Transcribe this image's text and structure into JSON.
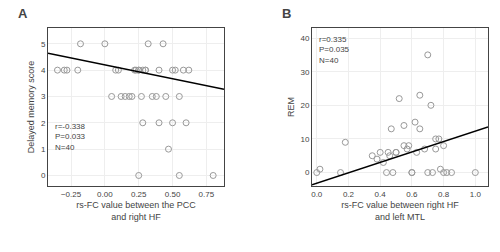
{
  "chart_data": [
    {
      "type": "scatter",
      "title": "A",
      "x_label": "rs-FC value between the PCC\nand right HF",
      "y_label": "Delayed memory score",
      "xlim": [
        -0.42,
        0.88
      ],
      "ylim": [
        -0.4,
        5.6
      ],
      "xticks": [
        {
          "value": -0.25,
          "label": "−0.25"
        },
        {
          "value": 0.0,
          "label": "0.00"
        },
        0.25,
        {
          "value": 0.5,
          "label": "0.50"
        },
        0.75
      ],
      "yticks": [
        0,
        1,
        2,
        3,
        4,
        5
      ],
      "annotation": "r=-0.338\nP=0.033\nN=40",
      "series": [
        {
          "type": "scatter",
          "color": "#999999",
          "marker": "circle-open",
          "x": [
            -0.35,
            -0.3,
            -0.28,
            -0.2,
            -0.18,
            0.0,
            0.05,
            0.08,
            0.1,
            0.12,
            0.15,
            0.18,
            0.2,
            0.22,
            0.23,
            0.25,
            0.25,
            0.25,
            0.27,
            0.28,
            0.28,
            0.3,
            0.3,
            0.32,
            0.35,
            0.38,
            0.4,
            0.4,
            0.43,
            0.45,
            0.47,
            0.5,
            0.5,
            0.52,
            0.55,
            0.55,
            0.58,
            0.6,
            0.62,
            0.8
          ],
          "values": [
            4.0,
            4.0,
            4.0,
            4.0,
            5.0,
            5.0,
            3.0,
            4.0,
            4.0,
            3.0,
            3.0,
            3.0,
            3.0,
            4.0,
            4.0,
            4.0,
            4.0,
            0.0,
            3.0,
            4.0,
            2.0,
            4.0,
            4.0,
            5.0,
            3.0,
            3.0,
            2.0,
            4.0,
            5.0,
            3.0,
            1.0,
            2.0,
            4.0,
            4.0,
            3.0,
            0.0,
            4.0,
            2.0,
            4.0,
            0.0
          ]
        },
        {
          "type": "line",
          "color": "black",
          "x": [
            -0.42,
            0.88
          ],
          "values": [
            4.641,
            3.276
          ]
        }
      ]
    },
    {
      "type": "scatter",
      "title": "B",
      "x_label": "rs-FC value between right HF\nand left MTL",
      "y_label": "REM",
      "xlim": [
        -0.03,
        1.08
      ],
      "ylim": [
        -4,
        43
      ],
      "xticks": [
        {
          "value": 0.0,
          "label": "0.0"
        },
        0.2,
        0.4,
        0.6,
        0.8,
        {
          "value": 1.0,
          "label": "1.0"
        }
      ],
      "yticks": [
        0,
        10,
        20,
        30,
        40
      ],
      "annotation": "r=0.335\nP=0.035\nN=40",
      "series": [
        {
          "type": "scatter",
          "color": "#999999",
          "marker": "circle-open",
          "x": [
            0.0,
            0.02,
            0.15,
            0.18,
            0.35,
            0.38,
            0.4,
            0.42,
            0.44,
            0.45,
            0.46,
            0.47,
            0.48,
            0.5,
            0.5,
            0.52,
            0.55,
            0.55,
            0.57,
            0.58,
            0.6,
            0.6,
            0.62,
            0.63,
            0.65,
            0.65,
            0.68,
            0.7,
            0.7,
            0.72,
            0.73,
            0.75,
            0.75,
            0.77,
            0.78,
            0.8,
            0.8,
            0.82,
            0.85,
            1.0
          ],
          "values": [
            0.0,
            1.0,
            0.0,
            9.0,
            5.0,
            4.0,
            6.0,
            3.0,
            0.0,
            6.0,
            5.0,
            13.0,
            0.0,
            6.0,
            6.0,
            22.0,
            8.0,
            14.0,
            7.0,
            8.0,
            0.0,
            0.0,
            15.0,
            6.0,
            23.0,
            13.0,
            7.0,
            35.0,
            0.0,
            20.0,
            0.0,
            10.0,
            7.0,
            10.0,
            1.0,
            8.0,
            0.0,
            0.0,
            0.0,
            0.0
          ]
        },
        {
          "type": "line",
          "color": "black",
          "x": [
            -0.03,
            1.08
          ],
          "values": [
            -3.665,
            13.54
          ]
        }
      ]
    }
  ]
}
